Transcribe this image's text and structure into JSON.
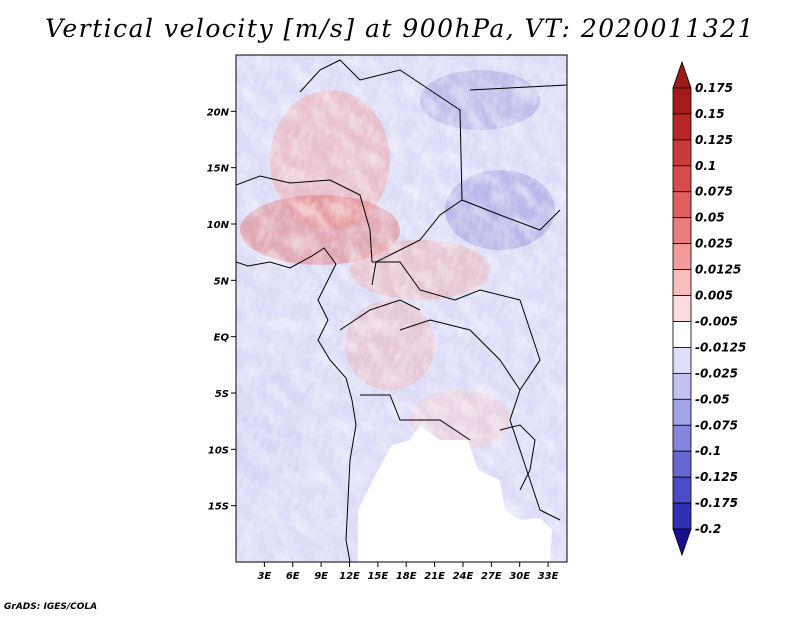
{
  "title": "Vertical velocity [m/s] at 900hPa, VT: 2020011321",
  "footer": "GrADS: IGES/COLA",
  "map": {
    "lon_range": [
      0,
      35
    ],
    "lat_range": [
      -20,
      25
    ],
    "lat_ticks": [
      {
        "value": 20,
        "label": "20N"
      },
      {
        "value": 15,
        "label": "15N"
      },
      {
        "value": 10,
        "label": "10N"
      },
      {
        "value": 5,
        "label": "5N"
      },
      {
        "value": 0,
        "label": "EQ"
      },
      {
        "value": -5,
        "label": "5S"
      },
      {
        "value": -10,
        "label": "10S"
      },
      {
        "value": -15,
        "label": "15S"
      }
    ],
    "lon_ticks": [
      {
        "value": 3,
        "label": "3E"
      },
      {
        "value": 6,
        "label": "6E"
      },
      {
        "value": 9,
        "label": "9E"
      },
      {
        "value": 12,
        "label": "12E"
      },
      {
        "value": 15,
        "label": "15E"
      },
      {
        "value": 18,
        "label": "18E"
      },
      {
        "value": 21,
        "label": "21E"
      },
      {
        "value": 24,
        "label": "24E"
      },
      {
        "value": 27,
        "label": "27E"
      },
      {
        "value": 30,
        "label": "30E"
      },
      {
        "value": 33,
        "label": "33E"
      }
    ]
  },
  "colorbar": {
    "levels": [
      {
        "label": "0.175",
        "color": "#a51b1b"
      },
      {
        "label": "0.15",
        "color": "#b82626"
      },
      {
        "label": "0.125",
        "color": "#c93a3a"
      },
      {
        "label": "0.1",
        "color": "#d64c4c"
      },
      {
        "label": "0.075",
        "color": "#e06060"
      },
      {
        "label": "0.05",
        "color": "#ea7d7d"
      },
      {
        "label": "0.025",
        "color": "#f29c9c"
      },
      {
        "label": "0.0125",
        "color": "#f7bcbc"
      },
      {
        "label": "0.005",
        "color": "#fbdcdc"
      },
      {
        "label": "-0.005",
        "color": "#ffffff"
      },
      {
        "label": "-0.0125",
        "color": "#dedef7"
      },
      {
        "label": "-0.025",
        "color": "#c2c2f0"
      },
      {
        "label": "-0.05",
        "color": "#a3a3e8"
      },
      {
        "label": "-0.075",
        "color": "#8585de"
      },
      {
        "label": "-0.1",
        "color": "#6767d2"
      },
      {
        "label": "-0.125",
        "color": "#4b4bc6"
      },
      {
        "label": "-0.175",
        "color": "#3030b4"
      },
      {
        "label": "-0.2",
        "color": "#1a1aa0"
      }
    ],
    "top_color": "#9b1b1b",
    "bottom_color": "#1a0f8f"
  }
}
